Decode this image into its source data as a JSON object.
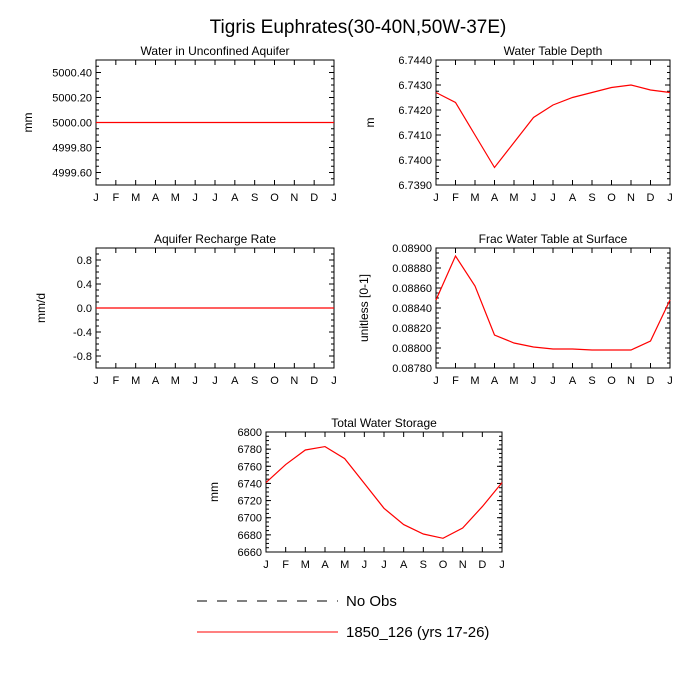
{
  "title": "Tigris Euphrates(30-40N,50W-37E)",
  "colors": {
    "model": "#ff0000",
    "obs": "#000000",
    "frame": "#000000"
  },
  "legend": [
    {
      "label": "No Obs",
      "style": "dashed",
      "color": "#000000"
    },
    {
      "label": "1850_126 (yrs 17-26)",
      "style": "solid",
      "color": "#ff0000"
    }
  ],
  "chart_data": [
    {
      "type": "line",
      "title": "Water in Unconfined Aquifer",
      "xlabel": "",
      "ylabel": "mm",
      "x": [
        "J",
        "F",
        "M",
        "A",
        "M",
        "J",
        "J",
        "A",
        "S",
        "O",
        "N",
        "D",
        "J"
      ],
      "ylim": [
        4999.5,
        5000.5
      ],
      "yticks": [
        "5000.40",
        "5000.20",
        "5000.00",
        "4999.80",
        "4999.60"
      ],
      "ytick_values": [
        5000.4,
        5000.2,
        5000.0,
        4999.8,
        4999.6
      ],
      "series": [
        {
          "values": [
            5000,
            5000,
            5000,
            5000,
            5000,
            5000,
            5000,
            5000,
            5000,
            5000,
            5000,
            5000,
            5000
          ]
        }
      ]
    },
    {
      "type": "line",
      "title": "Water Table Depth",
      "xlabel": "",
      "ylabel": "m",
      "x": [
        "J",
        "F",
        "M",
        "A",
        "M",
        "J",
        "J",
        "A",
        "S",
        "O",
        "N",
        "D",
        "J"
      ],
      "ylim": [
        6.739,
        6.744
      ],
      "yticks": [
        "6.7440",
        "6.7430",
        "6.7420",
        "6.7410",
        "6.7400",
        "6.7390"
      ],
      "ytick_values": [
        6.744,
        6.743,
        6.742,
        6.741,
        6.74,
        6.739
      ],
      "series": [
        {
          "values": [
            6.7427,
            6.7423,
            6.741,
            6.7397,
            6.7407,
            6.7417,
            6.7422,
            6.7425,
            6.7427,
            6.7429,
            6.743,
            6.7428,
            6.7427
          ]
        }
      ]
    },
    {
      "type": "line",
      "title": "Aquifer Recharge Rate",
      "xlabel": "",
      "ylabel": "mm/d",
      "x": [
        "J",
        "F",
        "M",
        "A",
        "M",
        "J",
        "J",
        "A",
        "S",
        "O",
        "N",
        "D",
        "J"
      ],
      "ylim": [
        -1.0,
        1.0
      ],
      "yticks": [
        "0.8",
        "0.4",
        "0.0",
        "-0.4",
        "-0.8"
      ],
      "ytick_values": [
        0.8,
        0.4,
        0.0,
        -0.4,
        -0.8
      ],
      "series": [
        {
          "values": [
            0,
            0,
            0,
            0,
            0,
            0,
            0,
            0,
            0,
            0,
            0,
            0,
            0
          ]
        }
      ]
    },
    {
      "type": "line",
      "title": "Frac Water Table at Surface",
      "xlabel": "",
      "ylabel": "unitless [0-1]",
      "x": [
        "J",
        "F",
        "M",
        "A",
        "M",
        "J",
        "J",
        "A",
        "S",
        "O",
        "N",
        "D",
        "J"
      ],
      "ylim": [
        0.0878,
        0.089
      ],
      "yticks": [
        "0.08900",
        "0.08880",
        "0.08860",
        "0.08840",
        "0.08820",
        "0.08800",
        "0.08780"
      ],
      "ytick_values": [
        0.089,
        0.0888,
        0.0886,
        0.0884,
        0.0882,
        0.088,
        0.0878
      ],
      "series": [
        {
          "values": [
            0.08848,
            0.08892,
            0.08862,
            0.08813,
            0.08805,
            0.08801,
            0.08799,
            0.08799,
            0.08798,
            0.08798,
            0.08798,
            0.08807,
            0.08848
          ]
        }
      ]
    },
    {
      "type": "line",
      "title": "Total Water Storage",
      "xlabel": "",
      "ylabel": "mm",
      "x": [
        "J",
        "F",
        "M",
        "A",
        "M",
        "J",
        "J",
        "A",
        "S",
        "O",
        "N",
        "D",
        "J"
      ],
      "ylim": [
        6660,
        6800
      ],
      "yticks": [
        "6800",
        "6780",
        "6760",
        "6740",
        "6720",
        "6700",
        "6680",
        "6660"
      ],
      "ytick_values": [
        6800,
        6780,
        6760,
        6740,
        6720,
        6700,
        6680,
        6660
      ],
      "series": [
        {
          "values": [
            6741,
            6762,
            6779,
            6783,
            6769,
            6740,
            6711,
            6692,
            6681,
            6676,
            6688,
            6713,
            6741
          ]
        }
      ]
    }
  ]
}
